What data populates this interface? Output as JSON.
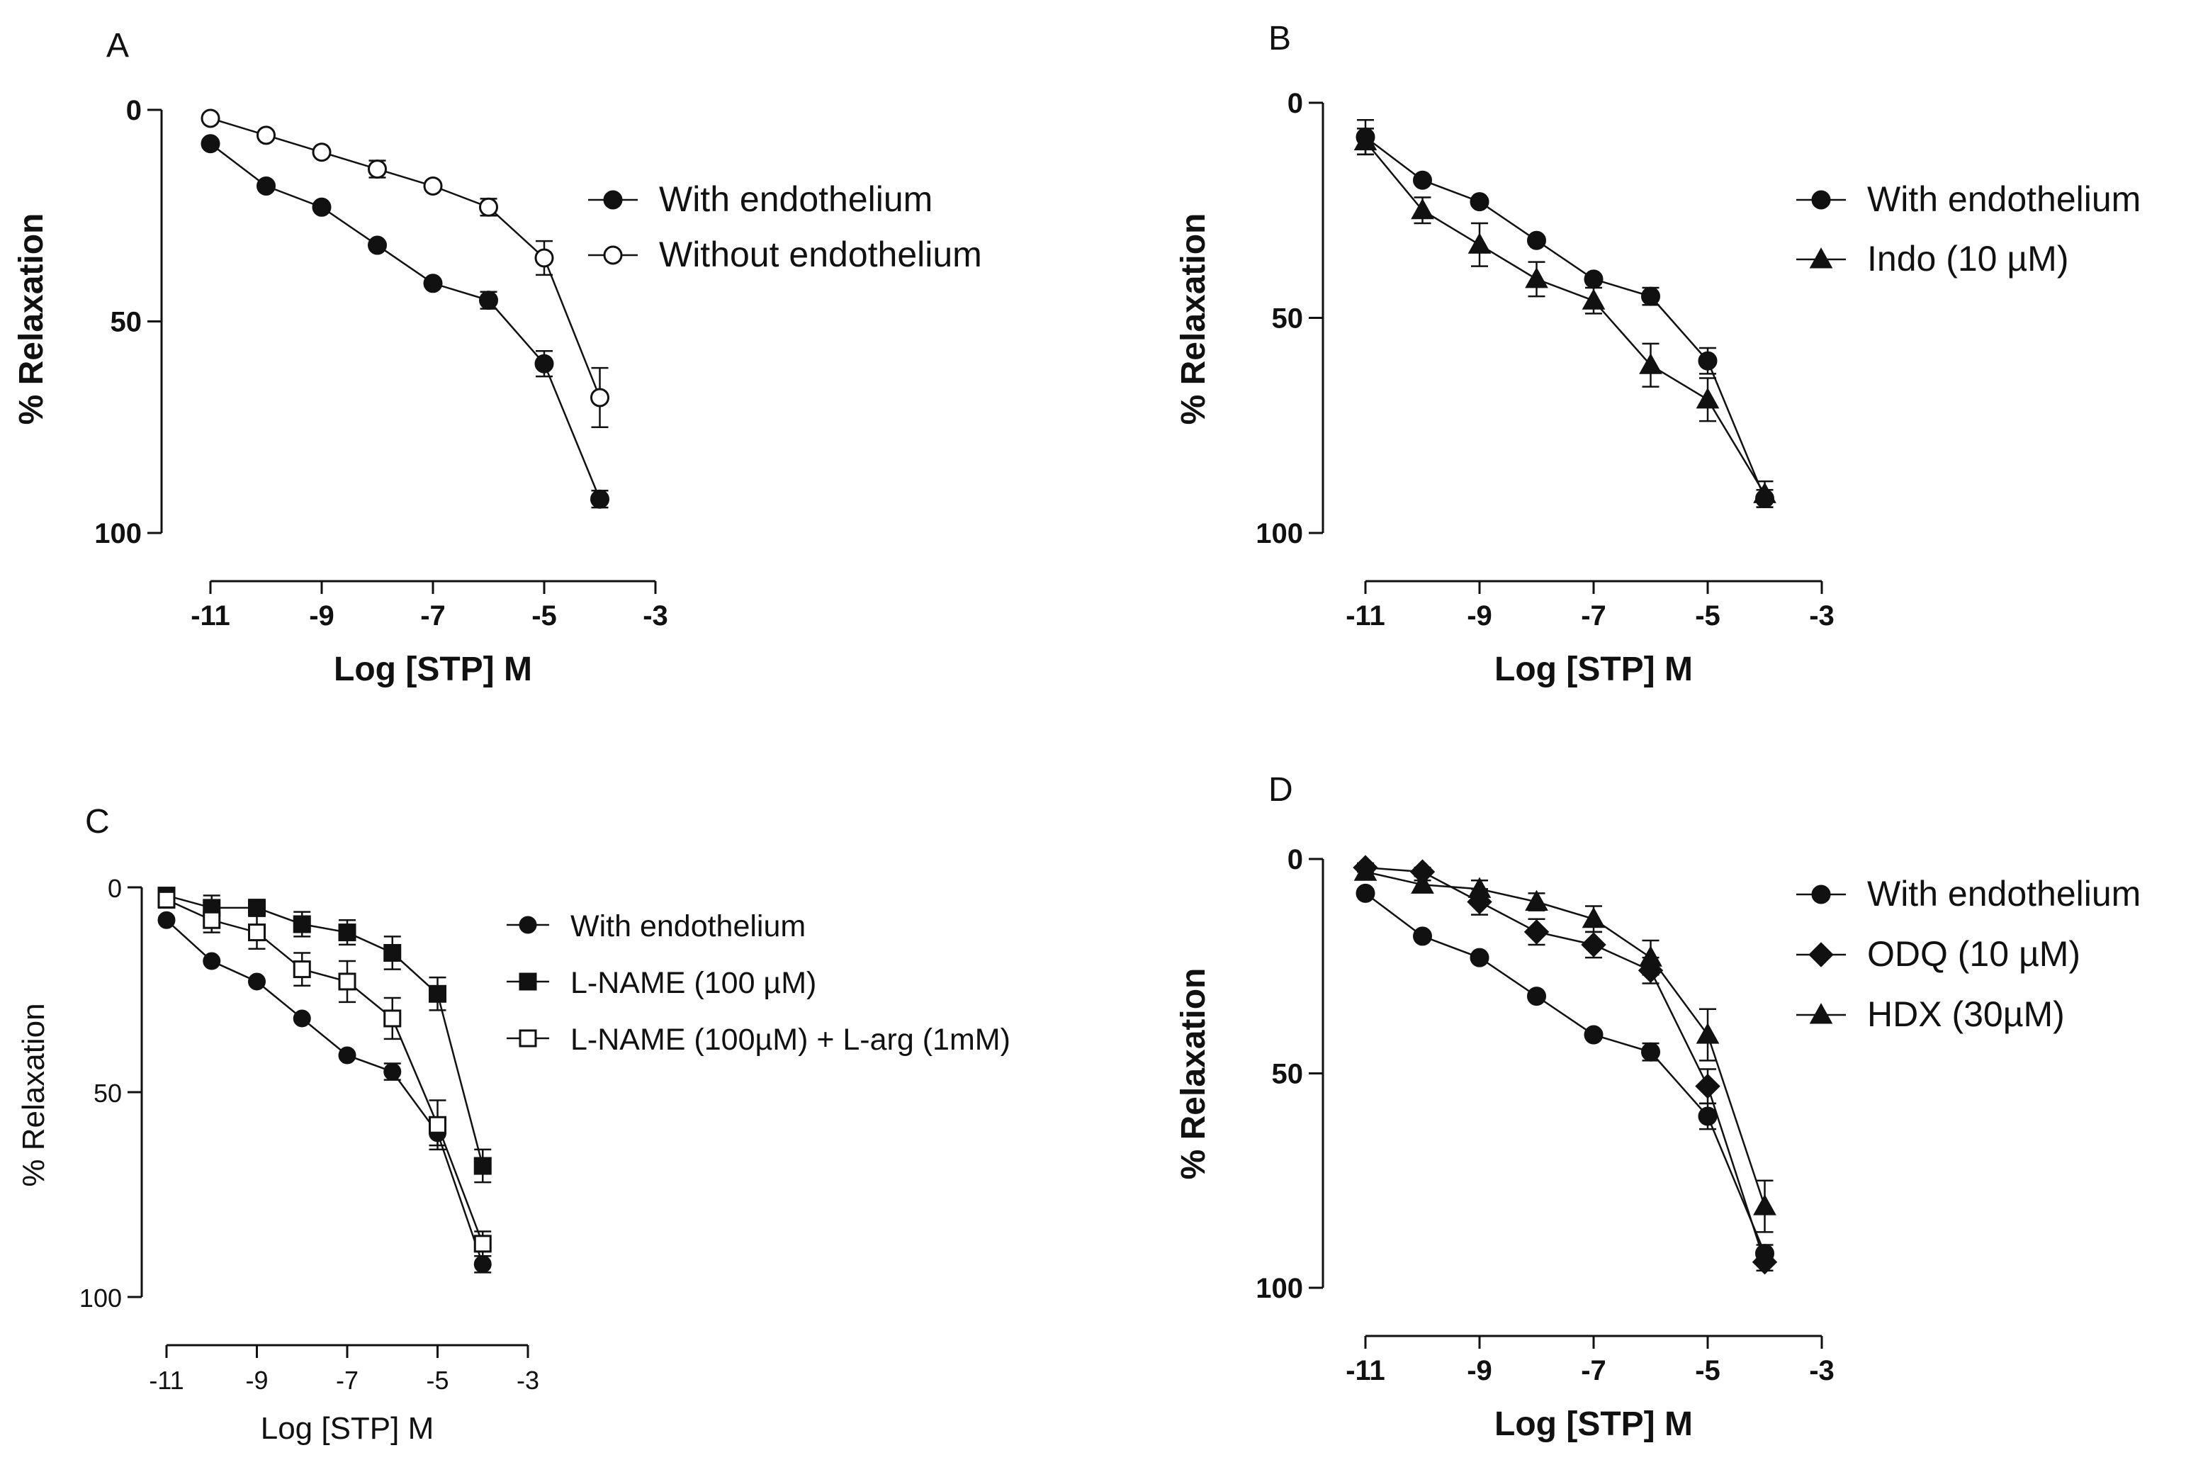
{
  "chart_data": [
    {
      "panel": "A",
      "type": "line",
      "xlabel": "Log [STP] M",
      "ylabel": "% Relaxation",
      "xlim": [
        -11,
        -3
      ],
      "ylim": [
        0,
        100
      ],
      "y_inverted": true,
      "xticks": [
        -11,
        -9,
        -7,
        -5,
        -3
      ],
      "yticks": [
        0,
        50,
        100
      ],
      "legend_position": "top-right",
      "series": [
        {
          "name": "With endothelium",
          "marker": "circle-filled",
          "x": [
            -11,
            -10,
            -9,
            -8,
            -7,
            -6,
            -5,
            -4
          ],
          "y": [
            8,
            18,
            23,
            32,
            41,
            45,
            60,
            92
          ],
          "err": [
            0,
            0,
            0,
            0,
            0,
            2,
            3,
            2
          ]
        },
        {
          "name": "Without endothelium",
          "marker": "circle-open",
          "x": [
            -11,
            -10,
            -9,
            -8,
            -7,
            -6,
            -5,
            -4
          ],
          "y": [
            2,
            6,
            10,
            14,
            18,
            23,
            35,
            68
          ],
          "err": [
            0,
            0,
            0,
            2,
            0,
            2,
            4,
            7
          ]
        }
      ]
    },
    {
      "panel": "B",
      "type": "line",
      "xlabel": "Log [STP] M",
      "ylabel": "% Relaxation",
      "xlim": [
        -11,
        -3
      ],
      "ylim": [
        0,
        100
      ],
      "y_inverted": true,
      "xticks": [
        -11,
        -9,
        -7,
        -5,
        -3
      ],
      "yticks": [
        0,
        50,
        100
      ],
      "legend_position": "top-right",
      "series": [
        {
          "name": "With endothelium",
          "marker": "circle-filled",
          "x": [
            -11,
            -10,
            -9,
            -8,
            -7,
            -6,
            -5,
            -4
          ],
          "y": [
            8,
            18,
            23,
            32,
            41,
            45,
            60,
            92
          ],
          "err": [
            4,
            0,
            0,
            0,
            0,
            2,
            3,
            2
          ]
        },
        {
          "name": "Indo (10 µM)",
          "marker": "triangle-filled",
          "x": [
            -11,
            -10,
            -9,
            -8,
            -7,
            -6,
            -5,
            -4
          ],
          "y": [
            9,
            25,
            33,
            41,
            46,
            61,
            69,
            91
          ],
          "err": [
            3,
            3,
            5,
            4,
            3,
            5,
            5,
            3
          ]
        }
      ]
    },
    {
      "panel": "C",
      "type": "line",
      "xlabel": "Log [STP] M",
      "ylabel": "% Relaxation",
      "xlim": [
        -11,
        -3
      ],
      "ylim": [
        0,
        100
      ],
      "y_inverted": true,
      "xticks": [
        -11,
        -9,
        -7,
        -5,
        -3
      ],
      "yticks": [
        0,
        50,
        100
      ],
      "legend_position": "top-right",
      "series": [
        {
          "name": "With endothelium",
          "marker": "circle-filled",
          "x": [
            -11,
            -10,
            -9,
            -8,
            -7,
            -6,
            -5,
            -4
          ],
          "y": [
            8,
            18,
            23,
            32,
            41,
            45,
            60,
            92
          ],
          "err": [
            0,
            0,
            0,
            0,
            0,
            2,
            3,
            2
          ]
        },
        {
          "name": "L-NAME (100 µM)",
          "marker": "square-filled",
          "x": [
            -11,
            -10,
            -9,
            -8,
            -7,
            -6,
            -5,
            -4
          ],
          "y": [
            2,
            5,
            5,
            9,
            11,
            16,
            26,
            68
          ],
          "err": [
            1,
            3,
            2,
            3,
            3,
            4,
            4,
            4
          ]
        },
        {
          "name": "L-NAME (100µM) + L-arg (1mM)",
          "marker": "square-open",
          "x": [
            -11,
            -10,
            -9,
            -8,
            -7,
            -6,
            -5,
            -4
          ],
          "y": [
            3,
            8,
            11,
            20,
            23,
            32,
            58,
            87
          ],
          "err": [
            2,
            3,
            4,
            4,
            5,
            5,
            6,
            3
          ]
        }
      ]
    },
    {
      "panel": "D",
      "type": "line",
      "xlabel": "Log [STP] M",
      "ylabel": "% Relaxation",
      "xlim": [
        -11,
        -3
      ],
      "ylim": [
        0,
        100
      ],
      "y_inverted": true,
      "xticks": [
        -11,
        -9,
        -7,
        -5,
        -3
      ],
      "yticks": [
        0,
        50,
        100
      ],
      "legend_position": "top-right",
      "series": [
        {
          "name": "With endothelium",
          "marker": "circle-filled",
          "x": [
            -11,
            -10,
            -9,
            -8,
            -7,
            -6,
            -5,
            -4
          ],
          "y": [
            8,
            18,
            23,
            32,
            41,
            45,
            60,
            92
          ],
          "err": [
            0,
            0,
            0,
            0,
            0,
            2,
            3,
            2
          ]
        },
        {
          "name": "ODQ (10 µM)",
          "marker": "diamond-filled",
          "x": [
            -11,
            -10,
            -9,
            -8,
            -7,
            -6,
            -5,
            -4
          ],
          "y": [
            2,
            3,
            10,
            17,
            20,
            26,
            53,
            94
          ],
          "err": [
            1,
            1,
            3,
            3,
            3,
            3,
            4,
            2
          ]
        },
        {
          "name": "HDX (30µM)",
          "marker": "triangle-filled",
          "x": [
            -11,
            -10,
            -9,
            -8,
            -7,
            -6,
            -5,
            -4
          ],
          "y": [
            3,
            6,
            7,
            10,
            14,
            23,
            41,
            81
          ],
          "err": [
            1,
            1,
            2,
            2,
            3,
            4,
            6,
            6
          ]
        }
      ]
    }
  ]
}
